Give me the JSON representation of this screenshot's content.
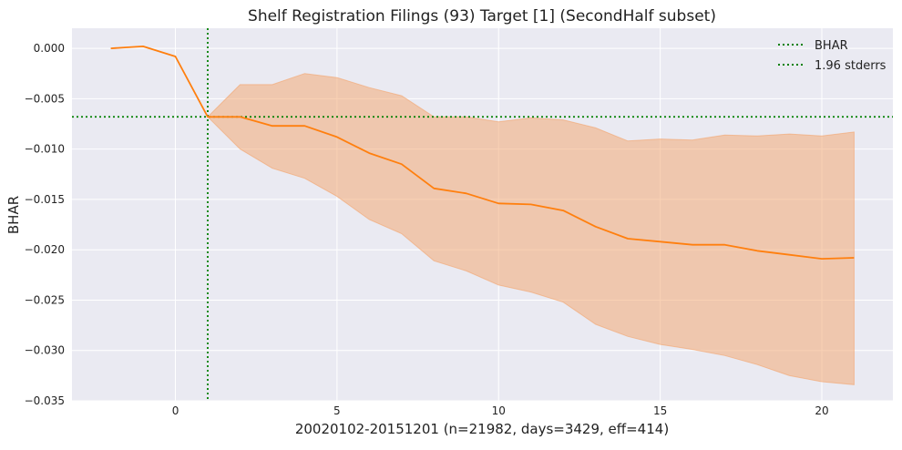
{
  "chart_data": {
    "type": "line",
    "title": "Shelf Registration Filings (93) Target [1] (SecondHalf subset)",
    "xlabel": "20020102-20151201 (n=21982, days=3429, eff=414)",
    "ylabel": "BHAR",
    "xlim": [
      -3.2,
      22.2
    ],
    "ylim": [
      -0.035,
      0.002
    ],
    "x_ticks": [
      0,
      5,
      10,
      15,
      20
    ],
    "y_ticks": [
      0.0,
      -0.005,
      -0.01,
      -0.015,
      -0.02,
      -0.025,
      -0.03,
      -0.035
    ],
    "x_tick_labels": [
      "0",
      "5",
      "10",
      "15",
      "20"
    ],
    "y_tick_labels": [
      "0.000",
      "−0.005",
      "−0.010",
      "−0.015",
      "−0.020",
      "−0.025",
      "−0.030",
      "−0.035"
    ],
    "grid": true,
    "legend": {
      "placement": "top-right",
      "entries": [
        {
          "label": "BHAR",
          "color": "#008000",
          "style": "dotted"
        },
        {
          "label": "1.96 stderrs",
          "color": "#008000",
          "style": "dotted"
        }
      ]
    },
    "reference_lines": {
      "vertical_x": 1,
      "horizontal_y": -0.0068,
      "color": "#008000"
    },
    "series": [
      {
        "color": "#ff7f0e",
        "x": [
          -2,
          -1,
          0,
          1,
          2,
          3,
          4,
          5,
          6,
          7,
          8,
          9,
          10,
          11,
          12,
          13,
          14,
          15,
          16,
          17,
          18,
          19,
          20,
          21
        ],
        "values": [
          0.0,
          0.0002,
          -0.0008,
          -0.0068,
          -0.0068,
          -0.0077,
          -0.0077,
          -0.0088,
          -0.0104,
          -0.0115,
          -0.0139,
          -0.0144,
          -0.0154,
          -0.0155,
          -0.0161,
          -0.0177,
          -0.0189,
          -0.0192,
          -0.0195,
          -0.0195,
          -0.0201,
          -0.0205,
          -0.0209,
          -0.0208
        ]
      }
    ],
    "band": {
      "color": "#f4a46a",
      "x": [
        1,
        2,
        3,
        4,
        5,
        6,
        7,
        8,
        9,
        10,
        11,
        12,
        13,
        14,
        15,
        16,
        17,
        18,
        19,
        20,
        21
      ],
      "upper": [
        -0.0068,
        -0.0036,
        -0.0036,
        -0.0025,
        -0.0029,
        -0.0039,
        -0.0047,
        -0.0068,
        -0.0068,
        -0.0073,
        -0.0069,
        -0.0071,
        -0.0079,
        -0.0092,
        -0.009,
        -0.0091,
        -0.0086,
        -0.0087,
        -0.0085,
        -0.0087,
        -0.0083
      ],
      "lower": [
        -0.0068,
        -0.01,
        -0.0119,
        -0.0129,
        -0.0147,
        -0.017,
        -0.0184,
        -0.0211,
        -0.0221,
        -0.0235,
        -0.0242,
        -0.0252,
        -0.0274,
        -0.0286,
        -0.0294,
        -0.0299,
        -0.0305,
        -0.0314,
        -0.0325,
        -0.0331,
        -0.0334
      ]
    },
    "colors": {
      "plot_background": "#eaeaf2",
      "grid": "#ffffff",
      "line": "#ff7f0e",
      "reference": "#008000"
    }
  }
}
